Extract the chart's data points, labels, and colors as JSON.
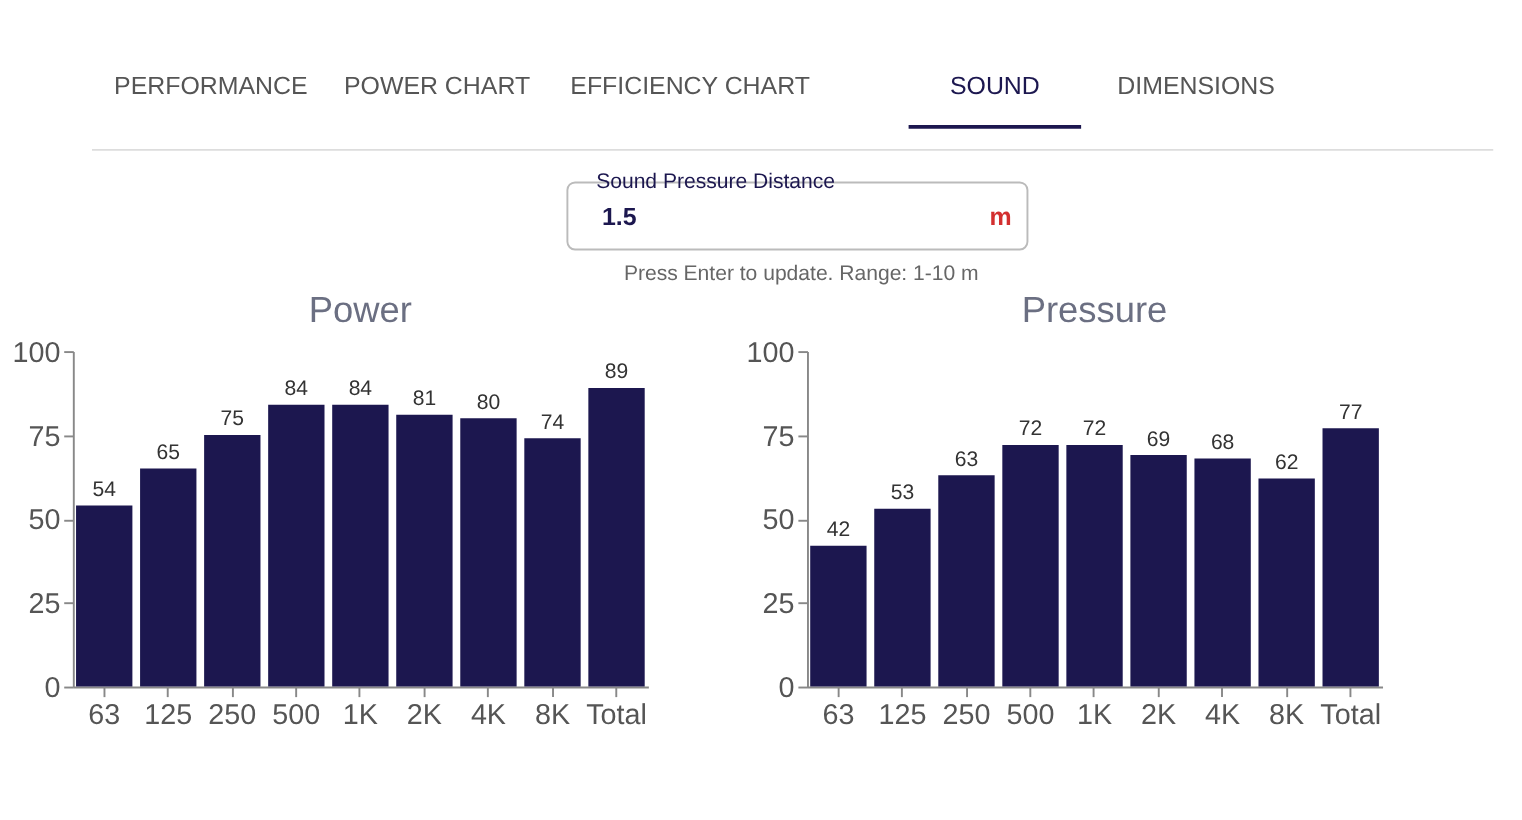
{
  "chart_data": [
    {
      "type": "other",
      "annotations": [
        "PERFORMANCE",
        "POWER CHART",
        "EFFICIENCY CHART",
        "SOUND",
        "DIMENSIONS",
        "Sound Pressure Distance",
        "1.5",
        "m",
        "Press Enter to update. Range: 1-10 m"
      ]
    },
    {
      "type": "bar",
      "title": "Power",
      "categories": [
        "63",
        "125",
        "250",
        "500",
        "1K",
        "2K",
        "4K",
        "8K",
        "Total"
      ],
      "values": [
        54,
        65,
        75,
        84,
        84,
        81,
        80,
        74,
        89
      ],
      "color": "#1c174f",
      "ylim": [
        0,
        100
      ],
      "yticks": [
        0,
        25,
        50,
        75,
        100
      ],
      "data_labels": true
    },
    {
      "type": "bar",
      "title": "Pressure",
      "categories": [
        "63",
        "125",
        "250",
        "500",
        "1K",
        "2K",
        "4K",
        "8K",
        "Total"
      ],
      "values": [
        42,
        53,
        63,
        72,
        72,
        69,
        68,
        62,
        77
      ],
      "color": "#1c174f",
      "ylim": [
        0,
        100
      ],
      "yticks": [
        0,
        25,
        50,
        75,
        100
      ],
      "data_labels": true
    }
  ]
}
